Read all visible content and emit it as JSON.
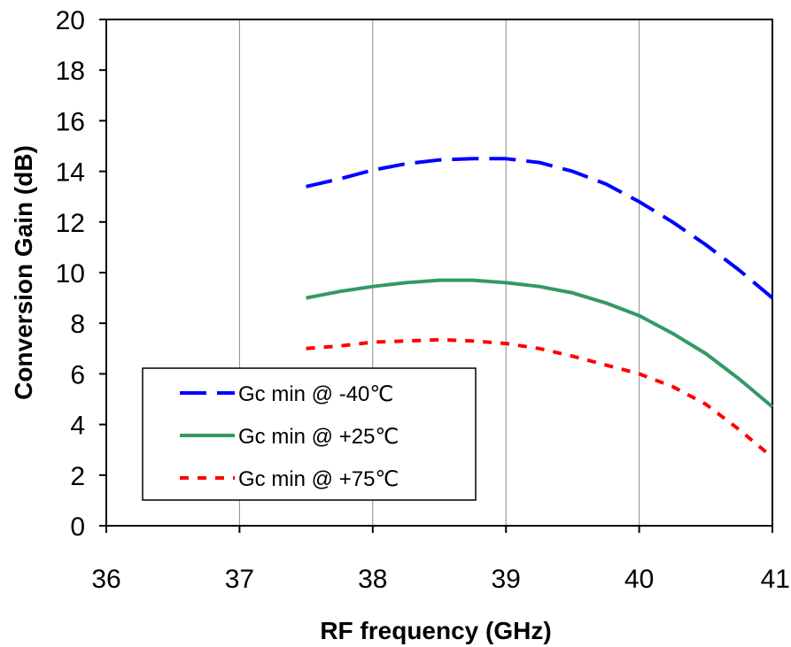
{
  "chart_data": {
    "type": "line",
    "title": "",
    "xlabel": "RF frequency (GHz)",
    "ylabel": "Conversion Gain (dB)",
    "xlim": [
      36,
      41
    ],
    "ylim": [
      0,
      20
    ],
    "xticks": [
      36,
      37,
      38,
      39,
      40,
      41
    ],
    "yticks": [
      0,
      2,
      4,
      6,
      8,
      10,
      12,
      14,
      16,
      18,
      20
    ],
    "grid": "vertical",
    "legend_position": "bottom-left",
    "series": [
      {
        "name": "Gc min @ -40℃",
        "color": "#0000ff",
        "style": "long-dash",
        "x": [
          37.5,
          37.75,
          38.0,
          38.25,
          38.5,
          38.75,
          39.0,
          39.25,
          39.5,
          39.75,
          40.0,
          40.25,
          40.5,
          40.75,
          41.0
        ],
        "y": [
          13.4,
          13.7,
          14.05,
          14.3,
          14.45,
          14.5,
          14.5,
          14.35,
          14.0,
          13.5,
          12.8,
          12.0,
          11.1,
          10.1,
          9.0
        ]
      },
      {
        "name": "Gc min @ +25℃",
        "color": "#339966",
        "style": "solid",
        "x": [
          37.5,
          37.75,
          38.0,
          38.25,
          38.5,
          38.75,
          39.0,
          39.25,
          39.5,
          39.75,
          40.0,
          40.25,
          40.5,
          40.75,
          41.0
        ],
        "y": [
          9.0,
          9.25,
          9.45,
          9.6,
          9.7,
          9.7,
          9.6,
          9.45,
          9.2,
          8.8,
          8.3,
          7.6,
          6.8,
          5.8,
          4.7
        ]
      },
      {
        "name": "Gc min @ +75℃",
        "color": "#ff0000",
        "style": "short-dash",
        "x": [
          37.5,
          37.75,
          38.0,
          38.25,
          38.5,
          38.75,
          39.0,
          39.25,
          39.5,
          39.75,
          40.0,
          40.25,
          40.5,
          40.75,
          41.0
        ],
        "y": [
          7.0,
          7.1,
          7.25,
          7.3,
          7.35,
          7.3,
          7.2,
          7.0,
          6.7,
          6.35,
          6.0,
          5.5,
          4.8,
          3.8,
          2.7
        ]
      }
    ]
  }
}
